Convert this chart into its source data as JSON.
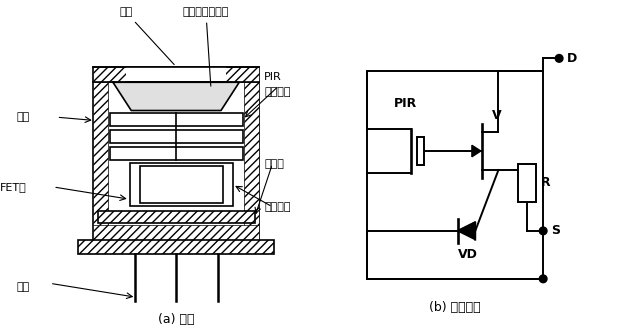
{
  "bg_color": "#ffffff",
  "line_color": "#000000",
  "fig_width": 6.39,
  "fig_height": 3.34,
  "title_a": "(a) 结构",
  "title_b": "(b) 内部电路",
  "labels": {
    "window": "窗口",
    "fresnel": "菲涅尔滤光透镜",
    "shell": "外壳",
    "pir_element": "PIR\n热电元件",
    "support_ring": "支承环",
    "fet": "FET管",
    "circuit": "电路元件",
    "pins": "引脚",
    "pir_label": "PIR",
    "V_label": "V",
    "R_label": "R",
    "VD_label": "VD",
    "D_label": "D",
    "S_label": "S"
  }
}
